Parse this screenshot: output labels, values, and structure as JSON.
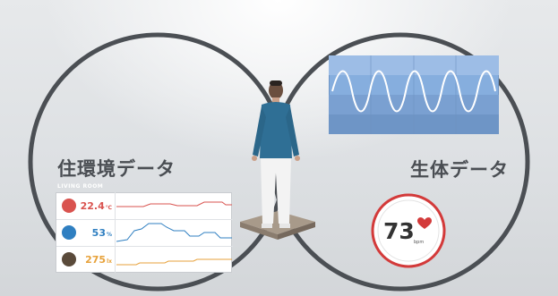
{
  "living_label": "住環境データ",
  "bio_label": "生体データ",
  "panel": {
    "title": "LIVING ROOM",
    "temperature": {
      "value": "22.4",
      "unit": "℃",
      "color": "#d9534f",
      "icon": "thermometer-icon"
    },
    "humidity": {
      "value": "53",
      "unit": "%",
      "color": "#2f7fc1",
      "icon": "water-drop-icon"
    },
    "light": {
      "value": "275",
      "unit": "lx",
      "color": "#e7a23b",
      "icon": "sun-icon"
    }
  },
  "heart": {
    "value": "73",
    "unit": "bpm",
    "icon": "heart-icon",
    "color": "#d33a3a"
  },
  "colors": {
    "ring": "#4b4f54",
    "wave_bg": "#7fa6d6",
    "wave_line": "#ffffff"
  }
}
